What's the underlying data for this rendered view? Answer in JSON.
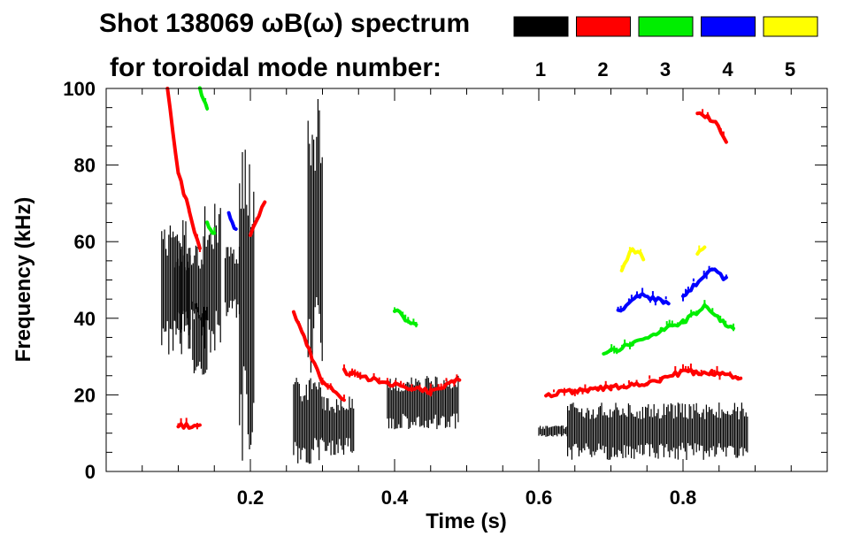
{
  "chart_data": {
    "type": "spectrogram",
    "title_line1": "Shot 138069 ωB(ω) spectrum",
    "title_line2": "for toroidal mode number:",
    "xlabel": "Time (s)",
    "ylabel": "Frequency (kHz)",
    "xlim": [
      0.0,
      1.0
    ],
    "ylim": [
      0,
      100
    ],
    "x_major_ticks": [
      0.2,
      0.4,
      0.6,
      0.8
    ],
    "x_tick_labels": [
      "0.2",
      "0.4",
      "0.6",
      "0.8"
    ],
    "x_minor_step": 0.05,
    "y_major_ticks": [
      0,
      20,
      40,
      60,
      80,
      100
    ],
    "y_tick_labels": [
      "0",
      "20",
      "40",
      "60",
      "80",
      "100"
    ],
    "y_minor_step": 5,
    "legend": [
      {
        "label": "1",
        "color": "#000000"
      },
      {
        "label": "2",
        "color": "#ff0000"
      },
      {
        "label": "3",
        "color": "#00ee00"
      },
      {
        "label": "4",
        "color": "#0000ff"
      },
      {
        "label": "5",
        "color": "#ffff00"
      }
    ],
    "series": [
      {
        "name": "n=1",
        "color": "#000000",
        "blobs": [
          {
            "t0": 0.077,
            "t1": 0.118,
            "f0": 30,
            "f1": 67
          },
          {
            "t0": 0.095,
            "t1": 0.135,
            "f0": 35,
            "f1": 60
          },
          {
            "t0": 0.12,
            "t1": 0.14,
            "f0": 25,
            "f1": 45
          },
          {
            "t0": 0.135,
            "t1": 0.16,
            "f0": 30,
            "f1": 70
          },
          {
            "t0": 0.165,
            "t1": 0.185,
            "f0": 40,
            "f1": 60
          },
          {
            "t0": 0.185,
            "t1": 0.205,
            "f0": 2,
            "f1": 88
          },
          {
            "t0": 0.26,
            "t1": 0.3,
            "f0": 2,
            "f1": 25
          },
          {
            "t0": 0.28,
            "t1": 0.3,
            "f0": 25,
            "f1": 98
          },
          {
            "t0": 0.3,
            "t1": 0.345,
            "f0": 4,
            "f1": 20
          },
          {
            "t0": 0.39,
            "t1": 0.49,
            "f0": 11,
            "f1": 25
          },
          {
            "t0": 0.6,
            "t1": 0.64,
            "f0": 9,
            "f1": 12
          },
          {
            "t0": 0.64,
            "t1": 0.89,
            "f0": 3,
            "f1": 18
          }
        ]
      },
      {
        "name": "n=2",
        "color": "#ff0000",
        "tracks": [
          {
            "pts": [
              [
                0.085,
                100
              ],
              [
                0.1,
                78
              ],
              [
                0.115,
                68
              ],
              [
                0.13,
                58
              ]
            ]
          },
          {
            "pts": [
              [
                0.2,
                62
              ],
              [
                0.22,
                70
              ]
            ]
          },
          {
            "pts": [
              [
                0.26,
                42
              ],
              [
                0.3,
                23
              ],
              [
                0.33,
                19
              ]
            ]
          },
          {
            "pts": [
              [
                0.33,
                26
              ],
              [
                0.39,
                23
              ],
              [
                0.45,
                21
              ],
              [
                0.49,
                24
              ]
            ]
          },
          {
            "pts": [
              [
                0.61,
                20
              ],
              [
                0.65,
                21
              ],
              [
                0.7,
                22
              ],
              [
                0.75,
                23
              ],
              [
                0.8,
                26
              ],
              [
                0.84,
                26
              ],
              [
                0.88,
                24
              ]
            ]
          },
          {
            "pts": [
              [
                0.82,
                94
              ],
              [
                0.845,
                91
              ],
              [
                0.86,
                86
              ]
            ]
          },
          {
            "pts": [
              [
                0.1,
                12
              ],
              [
                0.13,
                12
              ]
            ]
          }
        ]
      },
      {
        "name": "n=3",
        "color": "#00ee00",
        "tracks": [
          {
            "pts": [
              [
                0.69,
                31
              ],
              [
                0.73,
                33
              ],
              [
                0.77,
                37
              ],
              [
                0.8,
                39
              ],
              [
                0.83,
                43
              ],
              [
                0.87,
                37
              ]
            ]
          },
          {
            "pts": [
              [
                0.13,
                100
              ],
              [
                0.14,
                95
              ]
            ]
          },
          {
            "pts": [
              [
                0.14,
                65
              ],
              [
                0.15,
                62
              ]
            ]
          },
          {
            "pts": [
              [
                0.4,
                42
              ],
              [
                0.43,
                38
              ]
            ]
          }
        ]
      },
      {
        "name": "n=4",
        "color": "#0000ff",
        "tracks": [
          {
            "pts": [
              [
                0.71,
                42
              ],
              [
                0.74,
                46
              ],
              [
                0.78,
                44
              ]
            ]
          },
          {
            "pts": [
              [
                0.8,
                46
              ],
              [
                0.84,
                53
              ],
              [
                0.86,
                50
              ]
            ]
          },
          {
            "pts": [
              [
                0.17,
                67
              ],
              [
                0.18,
                63
              ]
            ]
          }
        ]
      },
      {
        "name": "n=5",
        "color": "#ffff00",
        "tracks": [
          {
            "pts": [
              [
                0.715,
                53
              ],
              [
                0.73,
                58
              ],
              [
                0.745,
                56
              ]
            ]
          },
          {
            "pts": [
              [
                0.82,
                57
              ],
              [
                0.83,
                59
              ]
            ]
          }
        ]
      }
    ]
  }
}
